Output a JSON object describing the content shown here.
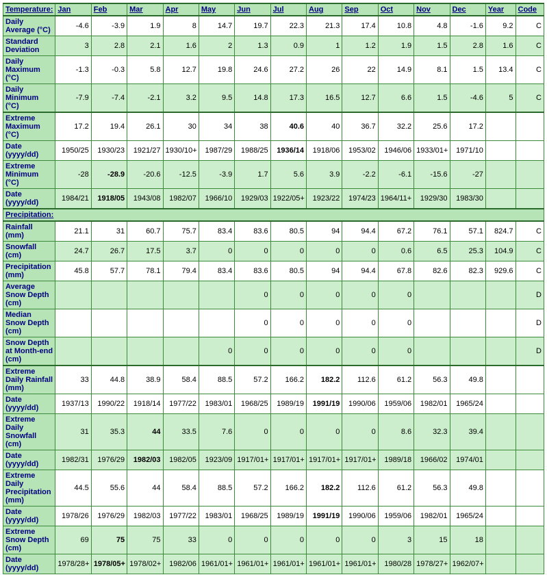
{
  "headers": [
    "Jan",
    "Feb",
    "Mar",
    "Apr",
    "May",
    "Jun",
    "Jul",
    "Aug",
    "Sep",
    "Oct",
    "Nov",
    "Dec",
    "Year",
    "Code"
  ],
  "sections": [
    {
      "title": "Temperature:",
      "link": true,
      "rows": [
        {
          "label": "Daily Average (°C)",
          "cls": "white",
          "cells": [
            "-4.6",
            "-3.9",
            "1.9",
            "8",
            "14.7",
            "19.7",
            "22.3",
            "21.3",
            "17.4",
            "10.8",
            "4.8",
            "-1.6",
            "9.2",
            "C"
          ]
        },
        {
          "label": "Standard Deviation",
          "cls": "green",
          "cells": [
            "3",
            "2.8",
            "2.1",
            "1.6",
            "2",
            "1.3",
            "0.9",
            "1",
            "1.2",
            "1.9",
            "1.5",
            "2.8",
            "1.6",
            "C"
          ]
        },
        {
          "label": "Daily Maximum (°C)",
          "cls": "white",
          "cells": [
            "-1.3",
            "-0.3",
            "5.8",
            "12.7",
            "19.8",
            "24.6",
            "27.2",
            "26",
            "22",
            "14.9",
            "8.1",
            "1.5",
            "13.4",
            "C"
          ]
        },
        {
          "label": "Daily Minimum (°C)",
          "cls": "green",
          "cells": [
            "-7.9",
            "-7.4",
            "-2.1",
            "3.2",
            "9.5",
            "14.8",
            "17.3",
            "16.5",
            "12.7",
            "6.6",
            "1.5",
            "-4.6",
            "5",
            "C"
          ]
        },
        {
          "label": "Extreme Maximum (°C)",
          "cls": "white",
          "sep": true,
          "cells": [
            "17.2",
            "19.4",
            "26.1",
            "30",
            "34",
            "38",
            "40.6",
            "40",
            "36.7",
            "32.2",
            "25.6",
            "17.2",
            "",
            ""
          ],
          "bold": [
            6
          ]
        },
        {
          "label": "Date (yyyy/dd)",
          "cls": "white",
          "cells": [
            "1950/25",
            "1930/23",
            "1921/27",
            "1930/10+",
            "1987/29",
            "1988/25",
            "1936/14",
            "1918/06",
            "1953/02",
            "1946/06",
            "1933/01+",
            "1971/10",
            "",
            ""
          ],
          "bold": [
            6
          ]
        },
        {
          "label": "Extreme Minimum (°C)",
          "cls": "green",
          "cells": [
            "-28",
            "-28.9",
            "-20.6",
            "-12.5",
            "-3.9",
            "1.7",
            "5.6",
            "3.9",
            "-2.2",
            "-6.1",
            "-15.6",
            "-27",
            "",
            ""
          ],
          "bold": [
            1
          ]
        },
        {
          "label": "Date (yyyy/dd)",
          "cls": "green",
          "cells": [
            "1984/21",
            "1918/05",
            "1943/08",
            "1982/07",
            "1966/10",
            "1929/03",
            "1922/05+",
            "1923/22",
            "1974/23",
            "1964/11+",
            "1929/30",
            "1983/30",
            "",
            ""
          ],
          "bold": [
            1
          ]
        }
      ]
    },
    {
      "title": "Precipitation:",
      "link": true,
      "rows": [
        {
          "label": "Rainfall (mm)",
          "cls": "white",
          "cells": [
            "21.1",
            "31",
            "60.7",
            "75.7",
            "83.4",
            "83.6",
            "80.5",
            "94",
            "94.4",
            "67.2",
            "76.1",
            "57.1",
            "824.7",
            "C"
          ]
        },
        {
          "label": "Snowfall (cm)",
          "cls": "green",
          "cells": [
            "24.7",
            "26.7",
            "17.5",
            "3.7",
            "0",
            "0",
            "0",
            "0",
            "0",
            "0.6",
            "6.5",
            "25.3",
            "104.9",
            "C"
          ]
        },
        {
          "label": "Precipitation (mm)",
          "cls": "white",
          "cells": [
            "45.8",
            "57.7",
            "78.1",
            "79.4",
            "83.4",
            "83.6",
            "80.5",
            "94",
            "94.4",
            "67.8",
            "82.6",
            "82.3",
            "929.6",
            "C"
          ]
        },
        {
          "label": "Average Snow Depth (cm)",
          "cls": "green",
          "cells": [
            "",
            "",
            "",
            "",
            "",
            "0",
            "0",
            "0",
            "0",
            "0",
            "",
            "",
            "",
            "D"
          ]
        },
        {
          "label": "Median Snow Depth (cm)",
          "cls": "white",
          "cells": [
            "",
            "",
            "",
            "",
            "",
            "0",
            "0",
            "0",
            "0",
            "0",
            "",
            "",
            "",
            "D"
          ]
        },
        {
          "label": "Snow Depth at Month-end (cm)",
          "cls": "green",
          "cells": [
            "",
            "",
            "",
            "",
            "0",
            "0",
            "0",
            "0",
            "0",
            "0",
            "",
            "",
            "",
            "D"
          ]
        },
        {
          "label": "Extreme Daily Rainfall (mm)",
          "cls": "white",
          "sep": true,
          "cells": [
            "33",
            "44.8",
            "38.9",
            "58.4",
            "88.5",
            "57.2",
            "166.2",
            "182.2",
            "112.6",
            "61.2",
            "56.3",
            "49.8",
            "",
            ""
          ],
          "bold": [
            7
          ]
        },
        {
          "label": "Date (yyyy/dd)",
          "cls": "white",
          "cells": [
            "1937/13",
            "1990/22",
            "1918/14",
            "1977/22",
            "1983/01",
            "1968/25",
            "1989/19",
            "1991/19",
            "1990/06",
            "1959/06",
            "1982/01",
            "1965/24",
            "",
            ""
          ],
          "bold": [
            7
          ]
        },
        {
          "label": "Extreme Daily Snowfall (cm)",
          "cls": "green",
          "cells": [
            "31",
            "35.3",
            "44",
            "33.5",
            "7.6",
            "0",
            "0",
            "0",
            "0",
            "8.6",
            "32.3",
            "39.4",
            "",
            ""
          ],
          "bold": [
            2
          ]
        },
        {
          "label": "Date (yyyy/dd)",
          "cls": "green",
          "cells": [
            "1982/31",
            "1976/29",
            "1982/03",
            "1982/05",
            "1923/09",
            "1917/01+",
            "1917/01+",
            "1917/01+",
            "1917/01+",
            "1989/18",
            "1966/02",
            "1974/01",
            "",
            ""
          ],
          "bold": [
            2
          ]
        },
        {
          "label": "Extreme Daily Precipitation (mm)",
          "cls": "white",
          "cells": [
            "44.5",
            "55.6",
            "44",
            "58.4",
            "88.5",
            "57.2",
            "166.2",
            "182.2",
            "112.6",
            "61.2",
            "56.3",
            "49.8",
            "",
            ""
          ],
          "bold": [
            7
          ]
        },
        {
          "label": "Date (yyyy/dd)",
          "cls": "white",
          "cells": [
            "1978/26",
            "1976/29",
            "1982/03",
            "1977/22",
            "1983/01",
            "1968/25",
            "1989/19",
            "1991/19",
            "1990/06",
            "1959/06",
            "1982/01",
            "1965/24",
            "",
            ""
          ],
          "bold": [
            7
          ]
        },
        {
          "label": "Extreme Snow Depth (cm)",
          "cls": "green",
          "cells": [
            "69",
            "75",
            "75",
            "33",
            "0",
            "0",
            "0",
            "0",
            "0",
            "3",
            "15",
            "18",
            "",
            ""
          ],
          "bold": [
            1
          ]
        },
        {
          "label": "Date (yyyy/dd)",
          "cls": "green",
          "cells": [
            "1978/28+",
            "1978/05+",
            "1978/02+",
            "1982/06",
            "1961/01+",
            "1961/01+",
            "1961/01+",
            "1961/01+",
            "1961/01+",
            "1980/28",
            "1978/27+",
            "1962/07+",
            "",
            ""
          ],
          "bold": [
            1
          ]
        }
      ]
    }
  ]
}
